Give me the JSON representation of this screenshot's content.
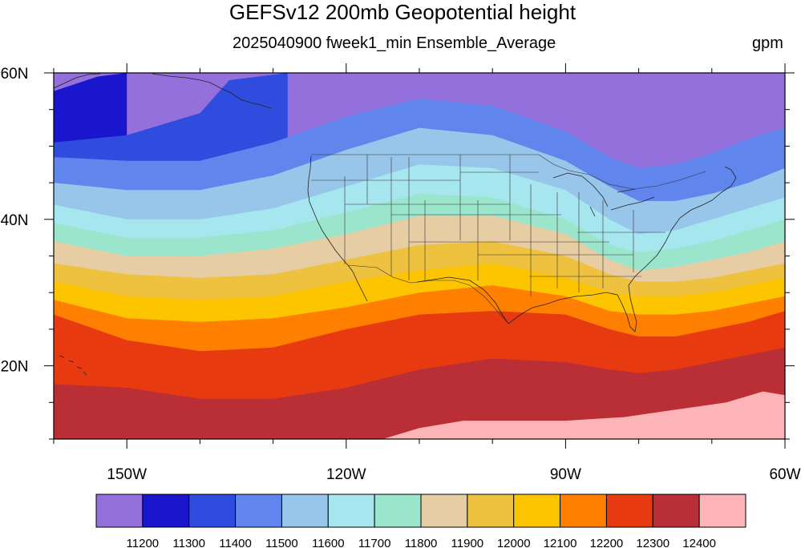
{
  "title": "GEFSv12 200mb Geopotential height",
  "subtitle": "2025040900 fweek1_min Ensemble_Average",
  "units": "gpm",
  "chart_data": {
    "type": "heatmap",
    "variable": "200mb Geopotential height",
    "projection": "cylindrical equidistant",
    "lon_range": [
      -160,
      -60
    ],
    "lat_range": [
      10,
      60
    ],
    "xticks": [
      "150W",
      "120W",
      "90W",
      "60W"
    ],
    "yticks": [
      "20N",
      "40N",
      "60N"
    ],
    "levels": [
      11200,
      11300,
      11400,
      11500,
      11600,
      11700,
      11800,
      11900,
      12000,
      12100,
      12200,
      12300,
      12400
    ],
    "level_labels": [
      "11200",
      "11300",
      "11400",
      "11500",
      "11600",
      "11700",
      "11800",
      "11900",
      "12000",
      "12100",
      "12200",
      "12300",
      "12400"
    ],
    "colors": [
      "#9370DB",
      "#1A16CE",
      "#2F4CDE",
      "#6085EC",
      "#98C6EA",
      "#A6E6EE",
      "#9BE5CC",
      "#E7CDA3",
      "#EEC13F",
      "#FDC400",
      "#FF8000",
      "#E83A10",
      "#BA2F35",
      "#FDB4B6"
    ],
    "contours": [
      {
        "level": 11200,
        "lon": [
          -160,
          -154,
          -150
        ],
        "lat": [
          57.5,
          59.5,
          60
        ]
      },
      {
        "level": 11300,
        "lon": [
          -160,
          -150,
          -140,
          -136,
          -128
        ],
        "lat": [
          50.5,
          51.5,
          54.5,
          59,
          60
        ]
      },
      {
        "level": 11400,
        "lon": [
          -160,
          -150,
          -140,
          -130,
          -120,
          -110,
          -100,
          -90,
          -84,
          -80,
          -75,
          -70,
          -65,
          -60
        ],
        "lat": [
          48.5,
          48,
          48,
          50.5,
          54,
          56.5,
          55.5,
          52,
          48.5,
          47,
          47.5,
          49,
          51,
          52.5
        ]
      },
      {
        "level": 11500,
        "lon": [
          -160,
          -150,
          -140,
          -130,
          -120,
          -110,
          -100,
          -90,
          -84,
          -80,
          -75,
          -70,
          -65,
          -60
        ],
        "lat": [
          45,
          44,
          44,
          46,
          49.5,
          52.5,
          51.5,
          48,
          44.5,
          42.5,
          42.5,
          43.5,
          45,
          47
        ]
      },
      {
        "level": 11600,
        "lon": [
          -160,
          -150,
          -140,
          -130,
          -120,
          -110,
          -100,
          -90,
          -84,
          -80,
          -75,
          -70,
          -65,
          -60
        ],
        "lat": [
          42,
          40,
          40,
          41.5,
          44.5,
          47.5,
          47,
          44,
          40,
          38,
          38.5,
          40,
          41.5,
          43
        ]
      },
      {
        "level": 11700,
        "lon": [
          -160,
          -150,
          -140,
          -130,
          -120,
          -110,
          -100,
          -90,
          -84,
          -80,
          -75,
          -70,
          -65,
          -60
        ],
        "lat": [
          39.5,
          37.5,
          37.5,
          38.5,
          41,
          43.5,
          43,
          40,
          36.5,
          35.5,
          36,
          37,
          38.5,
          40
        ]
      },
      {
        "level": 11800,
        "lon": [
          -160,
          -150,
          -140,
          -130,
          -120,
          -110,
          -100,
          -90,
          -84,
          -80,
          -75,
          -70,
          -65,
          -60
        ],
        "lat": [
          37,
          35,
          35,
          36,
          38,
          40.5,
          40.5,
          38,
          34.5,
          33,
          33.5,
          34.5,
          35.5,
          37
        ]
      },
      {
        "level": 11900,
        "lon": [
          -160,
          -150,
          -140,
          -130,
          -120,
          -110,
          -100,
          -90,
          -84,
          -80,
          -75,
          -70,
          -65,
          -60
        ],
        "lat": [
          34,
          32.5,
          32,
          32.5,
          34.5,
          36.5,
          37,
          35,
          32.5,
          31.5,
          31.5,
          32,
          33,
          34
        ]
      },
      {
        "level": 12000,
        "lon": [
          -160,
          -150,
          -140,
          -130,
          -120,
          -110,
          -100,
          -90,
          -84,
          -80,
          -75,
          -70,
          -65,
          -60
        ],
        "lat": [
          31.5,
          29.5,
          29,
          29.5,
          31.5,
          33,
          34,
          32,
          30,
          29.5,
          29.5,
          30,
          31,
          32
        ]
      },
      {
        "level": 12100,
        "lon": [
          -160,
          -150,
          -140,
          -130,
          -120,
          -110,
          -100,
          -90,
          -84,
          -80,
          -75,
          -70,
          -65,
          -60
        ],
        "lat": [
          29,
          26.5,
          26,
          26.5,
          28,
          30,
          31,
          29.5,
          27.5,
          27,
          27,
          27.5,
          28.5,
          29.5
        ]
      },
      {
        "level": 12200,
        "lon": [
          -160,
          -150,
          -140,
          -130,
          -120,
          -110,
          -100,
          -90,
          -84,
          -80,
          -75,
          -70,
          -65,
          -60
        ],
        "lat": [
          27,
          23.5,
          22,
          22.5,
          25,
          27,
          27.5,
          27,
          25,
          24,
          24,
          25,
          26,
          27.5
        ]
      },
      {
        "level": 12300,
        "lon": [
          -160,
          -150,
          -140,
          -130,
          -120,
          -110,
          -100,
          -90,
          -84,
          -80,
          -75,
          -70,
          -65,
          -60
        ],
        "lat": [
          17.5,
          17,
          15.5,
          15.5,
          17,
          19.5,
          21,
          20.5,
          19.5,
          19,
          19.5,
          20.5,
          21.5,
          22.5
        ]
      },
      {
        "level": 12400,
        "lon": [
          -115,
          -110,
          -104,
          -97,
          -90,
          -82,
          -75,
          -68,
          -63,
          -60
        ],
        "lat": [
          10,
          11.5,
          12.5,
          12.5,
          12.5,
          13,
          14,
          15,
          16.5,
          16
        ]
      }
    ]
  }
}
